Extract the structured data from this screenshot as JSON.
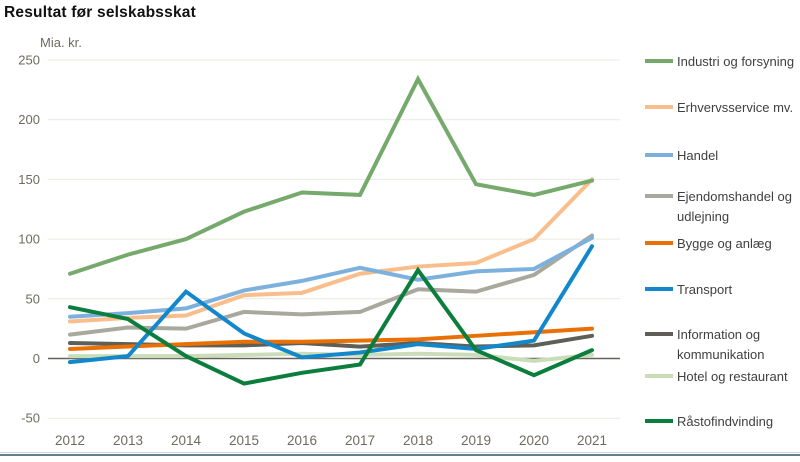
{
  "title": "Resultat før selskabsskat",
  "chart_data": {
    "type": "line",
    "title": "Resultat før selskabsskat",
    "ylabel": "Mia. kr.",
    "xlabel": "",
    "x": [
      "2012",
      "2013",
      "2014",
      "2015",
      "2016",
      "2017",
      "2018",
      "2019",
      "2020",
      "2021"
    ],
    "ylim": [
      -50,
      250
    ],
    "yticks": [
      250,
      200,
      150,
      100,
      50,
      0,
      -50
    ],
    "grid": true,
    "legend_position": "right",
    "series": [
      {
        "name": "Industri og forsyning",
        "color": "#76a96c",
        "values": [
          71,
          87,
          100,
          123,
          139,
          137,
          234,
          146,
          137,
          149
        ]
      },
      {
        "name": "Erhvervsservice mv.",
        "color": "#f9be8b",
        "values": [
          31,
          34,
          36,
          53,
          55,
          71,
          77,
          80,
          100,
          150
        ]
      },
      {
        "name": "Handel",
        "color": "#7db1dd",
        "values": [
          35,
          38,
          42,
          57,
          65,
          76,
          66,
          73,
          75,
          101
        ]
      },
      {
        "name": "Ejendomshandel og udlejning",
        "color": "#a9a89d",
        "values": [
          20,
          26,
          25,
          39,
          37,
          39,
          58,
          56,
          70,
          103
        ]
      },
      {
        "name": "Bygge og anlæg",
        "color": "#e87005",
        "values": [
          8,
          10,
          12,
          14,
          14,
          15,
          16,
          19,
          22,
          25
        ]
      },
      {
        "name": "Transport",
        "color": "#1287cb",
        "values": [
          -3,
          2,
          56,
          21,
          1,
          5,
          12,
          8,
          15,
          94
        ]
      },
      {
        "name": "Information og kommunikation",
        "color": "#5f5f58",
        "values": [
          13,
          12,
          11,
          11,
          13,
          10,
          13,
          10,
          11,
          19
        ]
      },
      {
        "name": "Hotel og restaurant",
        "color": "#cbddb8",
        "values": [
          2,
          2,
          2,
          3,
          4,
          3,
          4,
          3,
          -2,
          3
        ]
      },
      {
        "name": "Råstofindvinding",
        "color": "#0b7e3e",
        "values": [
          43,
          33,
          2,
          -21,
          -12,
          -5,
          74,
          7,
          -14,
          7
        ]
      }
    ],
    "gridline_color": "#e9e9e1",
    "zero_line_color": "#62625a",
    "tick_label_color": "#6f6a5f",
    "divider_color": "#64808f"
  }
}
